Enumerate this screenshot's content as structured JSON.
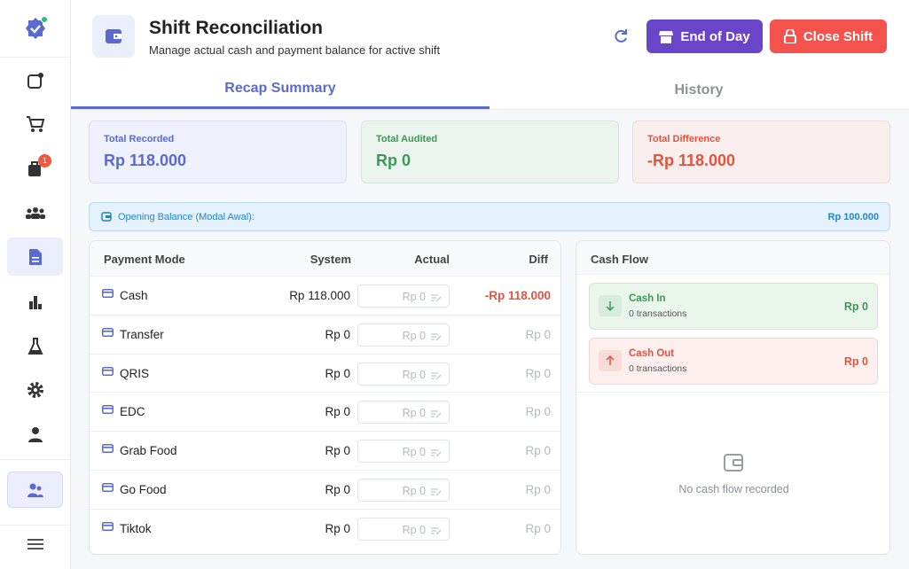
{
  "sidebar": {
    "badge": "1"
  },
  "header": {
    "title": "Shift Reconciliation",
    "subtitle": "Manage actual cash and payment balance for active shift",
    "buttons": [
      "End of Day",
      "Close Shift"
    ]
  },
  "tabs": [
    "Recap Summary",
    "History"
  ],
  "summary": [
    {
      "label": "Total Recorded",
      "value": "Rp 118.000"
    },
    {
      "label": "Total Audited",
      "value": "Rp 0"
    },
    {
      "label": "Total Difference",
      "value": "-Rp 118.000"
    }
  ],
  "opening_balance": {
    "label": "Opening Balance (Modal Awal):",
    "value": "Rp 100.000"
  },
  "payment_table": {
    "columns": [
      "Payment Mode",
      "System",
      "Actual",
      "Diff"
    ],
    "rows": [
      {
        "mode": "Cash",
        "system": "Rp 118.000",
        "actual": "Rp 0",
        "diff": "-Rp 118.000"
      },
      {
        "mode": "Transfer",
        "system": "Rp 0",
        "actual": "Rp 0",
        "diff": "Rp 0"
      },
      {
        "mode": "QRIS",
        "system": "Rp 0",
        "actual": "Rp 0",
        "diff": "Rp 0"
      },
      {
        "mode": "EDC",
        "system": "Rp 0",
        "actual": "Rp 0",
        "diff": "Rp 0"
      },
      {
        "mode": "Grab Food",
        "system": "Rp 0",
        "actual": "Rp 0",
        "diff": "Rp 0"
      },
      {
        "mode": "Go Food",
        "system": "Rp 0",
        "actual": "Rp 0",
        "diff": "Rp 0"
      },
      {
        "mode": "Tiktok",
        "system": "Rp 0",
        "actual": "Rp 0",
        "diff": "Rp 0"
      }
    ]
  },
  "cash_flow": {
    "title": "Cash Flow",
    "items": [
      {
        "label": "Cash In",
        "count": "0 transactions",
        "amount": "Rp 0"
      },
      {
        "label": "Cash Out",
        "count": "0 transactions",
        "amount": "Rp 0"
      }
    ],
    "empty": "No cash flow recorded"
  }
}
